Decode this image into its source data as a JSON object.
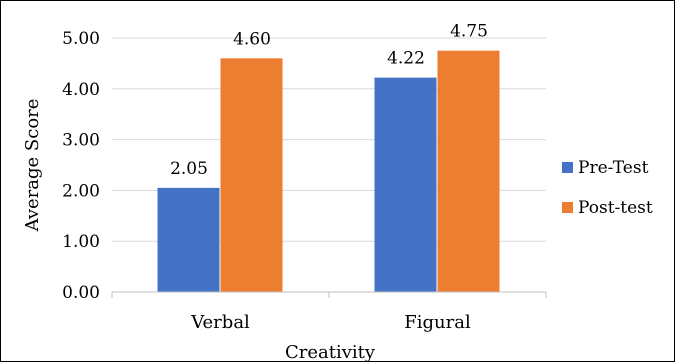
{
  "chart_data": {
    "type": "bar",
    "categories": [
      "Verbal",
      "Figural"
    ],
    "series": [
      {
        "name": "Pre-Test",
        "values": [
          2.05,
          4.22
        ],
        "labels": [
          "2.05",
          "4.22"
        ],
        "color": "#4472c4"
      },
      {
        "name": "Post-test",
        "values": [
          4.6,
          4.75
        ],
        "labels": [
          "4.60",
          "4.75"
        ],
        "color": "#ed7d31"
      }
    ],
    "title": "",
    "xlabel": "Creativity",
    "ylabel": "Average Score",
    "ylim": [
      0,
      5
    ],
    "yticks": [
      "0.00",
      "1.00",
      "2.00",
      "3.00",
      "4.00",
      "5.00"
    ],
    "grid": true,
    "legend_position": "right"
  }
}
